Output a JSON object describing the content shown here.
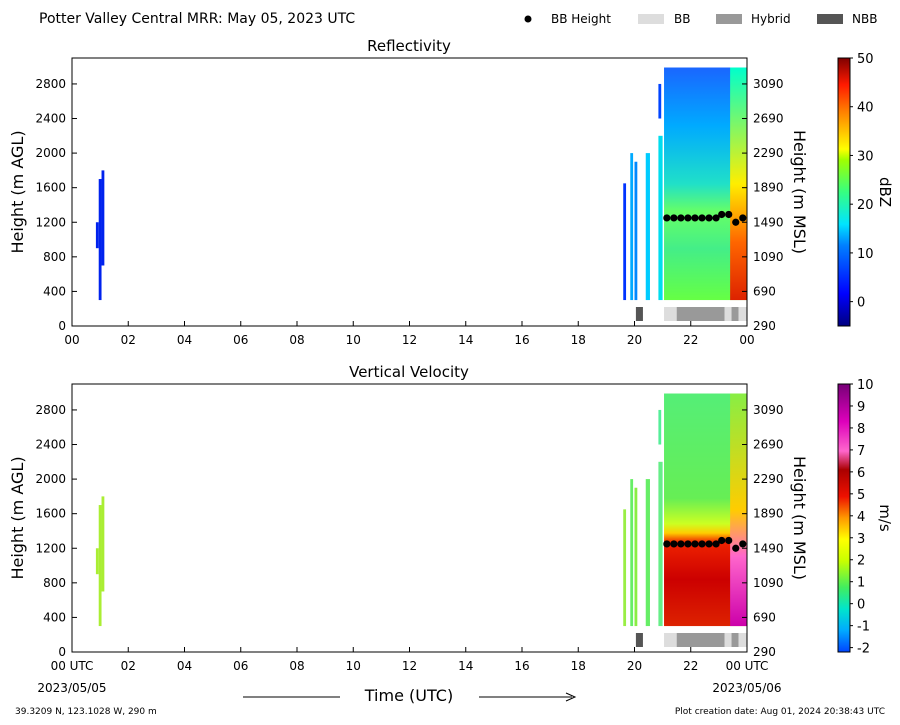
{
  "header": {
    "title": "Potter Valley Central MRR:  May 05, 2023 UTC",
    "legend": [
      {
        "label": "BB Height",
        "kind": "dot",
        "color": "#000000"
      },
      {
        "label": "BB",
        "kind": "box",
        "color": "#dddddd"
      },
      {
        "label": "Hybrid",
        "kind": "box",
        "color": "#999999"
      },
      {
        "label": "NBB",
        "kind": "box",
        "color": "#555555"
      }
    ]
  },
  "footer": {
    "location": "39.3209 N, 123.1028 W, 290 m",
    "created": "Plot creation date: Aug 01, 2024 20:38:43 UTC",
    "xlabel": "Time (UTC)",
    "start_date": "2023/05/05",
    "end_date": "2023/05/06"
  },
  "chart_data": [
    {
      "type": "heatmap",
      "title": "Reflectivity",
      "ylabel": "Height (m AGL)",
      "y2label": "Height (m MSL)",
      "xlim": [
        0,
        24
      ],
      "ylim": [
        0,
        3100
      ],
      "x_ticks": [
        "00",
        "02",
        "04",
        "06",
        "08",
        "10",
        "12",
        "14",
        "16",
        "18",
        "20",
        "22",
        "00"
      ],
      "y_ticks": [
        0,
        400,
        800,
        1200,
        1600,
        2000,
        2400,
        2800
      ],
      "y2_ticks": [
        "290",
        "690",
        "1090",
        "1490",
        "1890",
        "2290",
        "2690",
        "3090"
      ],
      "colorbar": {
        "label": "dBZ",
        "min": -5,
        "max": 50,
        "ticks": [
          0,
          10,
          20,
          30,
          40,
          50
        ]
      },
      "bb_height": [
        {
          "x": 21.15,
          "y": 1250
        },
        {
          "x": 21.4,
          "y": 1250
        },
        {
          "x": 21.65,
          "y": 1250
        },
        {
          "x": 21.9,
          "y": 1250
        },
        {
          "x": 22.15,
          "y": 1250
        },
        {
          "x": 22.4,
          "y": 1250
        },
        {
          "x": 22.65,
          "y": 1250
        },
        {
          "x": 22.9,
          "y": 1250
        },
        {
          "x": 23.1,
          "y": 1290
        },
        {
          "x": 23.35,
          "y": 1290
        },
        {
          "x": 23.6,
          "y": 1200
        },
        {
          "x": 23.85,
          "y": 1250
        }
      ],
      "bb_classes": [
        {
          "class": "NBB",
          "start": 20.05,
          "end": 20.3
        },
        {
          "class": "BB",
          "start": 21.05,
          "end": 21.5
        },
        {
          "class": "Hybrid",
          "start": 21.5,
          "end": 23.2
        },
        {
          "class": "BB",
          "start": 23.2,
          "end": 23.45
        },
        {
          "class": "Hybrid",
          "start": 23.45,
          "end": 23.7
        },
        {
          "class": "BB",
          "start": 23.7,
          "end": 24.0
        }
      ]
    },
    {
      "type": "heatmap",
      "title": "Vertical Velocity",
      "ylabel": "Height (m AGL)",
      "y2label": "Height (m MSL)",
      "xlim": [
        0,
        24
      ],
      "ylim": [
        0,
        3100
      ],
      "x_ticks": [
        "00 UTC",
        "02",
        "04",
        "06",
        "08",
        "10",
        "12",
        "14",
        "16",
        "18",
        "20",
        "22",
        "00 UTC"
      ],
      "y_ticks": [
        0,
        400,
        800,
        1200,
        1600,
        2000,
        2400,
        2800
      ],
      "y2_ticks": [
        "290",
        "690",
        "1090",
        "1490",
        "1890",
        "2290",
        "2690",
        "3090"
      ],
      "colorbar": {
        "label": "m/s",
        "min": -2.2,
        "max": 10,
        "ticks": [
          -2,
          -1,
          0,
          1,
          2,
          3,
          4,
          5,
          6,
          7,
          8,
          9,
          10
        ]
      },
      "bb_height": [
        {
          "x": 21.15,
          "y": 1250
        },
        {
          "x": 21.4,
          "y": 1250
        },
        {
          "x": 21.65,
          "y": 1250
        },
        {
          "x": 21.9,
          "y": 1250
        },
        {
          "x": 22.15,
          "y": 1250
        },
        {
          "x": 22.4,
          "y": 1250
        },
        {
          "x": 22.65,
          "y": 1250
        },
        {
          "x": 22.9,
          "y": 1250
        },
        {
          "x": 23.1,
          "y": 1290
        },
        {
          "x": 23.35,
          "y": 1290
        },
        {
          "x": 23.6,
          "y": 1200
        },
        {
          "x": 23.85,
          "y": 1250
        }
      ],
      "bb_classes": [
        {
          "class": "NBB",
          "start": 20.05,
          "end": 20.3
        },
        {
          "class": "BB",
          "start": 21.05,
          "end": 21.5
        },
        {
          "class": "Hybrid",
          "start": 21.5,
          "end": 23.2
        },
        {
          "class": "BB",
          "start": 23.2,
          "end": 23.45
        },
        {
          "class": "Hybrid",
          "start": 23.45,
          "end": 23.7
        },
        {
          "class": "BB",
          "start": 23.7,
          "end": 24.0
        }
      ]
    }
  ]
}
